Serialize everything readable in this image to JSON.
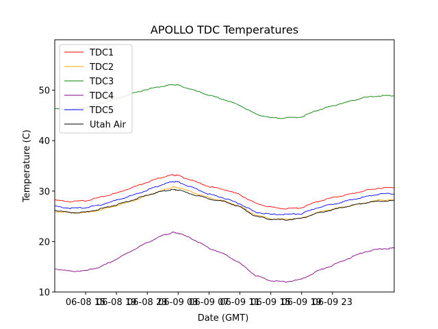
{
  "chart_data": {
    "type": "line",
    "title": "APOLLO TDC Temperatures",
    "xlabel": "Date (GMT)",
    "ylabel": "Temperature (C)",
    "xlim": [
      0,
      44
    ],
    "ylim": [
      10,
      60
    ],
    "x_unit": "hours since 06-08 11:00 GMT",
    "x_ticks": [
      {
        "x": 4,
        "label": "06-08 15"
      },
      {
        "x": 8,
        "label": "06-08 19"
      },
      {
        "x": 12,
        "label": "06-08 23"
      },
      {
        "x": 16,
        "label": "06-09 03"
      },
      {
        "x": 20,
        "label": "06-09 07"
      },
      {
        "x": 24,
        "label": "06-09 11"
      },
      {
        "x": 28,
        "label": "06-09 15"
      },
      {
        "x": 32,
        "label": "06-09 19"
      },
      {
        "x": 36,
        "label": "06-09 23"
      }
    ],
    "y_ticks": [
      10,
      20,
      30,
      40,
      50
    ],
    "legend_position": "upper-left",
    "x": [
      0,
      2,
      4,
      6,
      8,
      10,
      12,
      14,
      15.3,
      16,
      18,
      20,
      22,
      24,
      26,
      28,
      30,
      32,
      34,
      36,
      38,
      40,
      42,
      44
    ],
    "series": [
      {
        "name": "TDC1",
        "color": "#ff0000",
        "values": [
          28.2,
          27.9,
          28.1,
          28.8,
          29.6,
          30.7,
          31.8,
          32.8,
          33.2,
          33.1,
          32.0,
          30.9,
          30.3,
          29.3,
          27.6,
          26.8,
          26.5,
          26.7,
          27.9,
          28.7,
          29.3,
          30.0,
          30.6,
          30.7
        ]
      },
      {
        "name": "TDC2",
        "color": "#ffa500",
        "values": [
          26.0,
          25.7,
          25.7,
          26.3,
          27.1,
          28.0,
          29.1,
          30.2,
          30.8,
          30.7,
          29.7,
          28.7,
          28.0,
          27.0,
          25.3,
          24.5,
          24.4,
          24.6,
          25.7,
          26.4,
          27.0,
          27.6,
          28.2,
          28.3
        ]
      },
      {
        "name": "TDC3",
        "color": "#008000",
        "values": [
          46.3,
          46.1,
          46.6,
          47.4,
          48.3,
          49.3,
          50.2,
          50.8,
          51.1,
          51.0,
          50.0,
          49.0,
          48.1,
          47.0,
          45.3,
          44.5,
          44.5,
          44.7,
          46.0,
          46.9,
          47.7,
          48.5,
          48.9,
          48.9
        ]
      },
      {
        "name": "TDC4",
        "color": "#800080",
        "values": [
          14.6,
          14.1,
          14.2,
          15.0,
          16.5,
          18.2,
          19.8,
          21.2,
          21.8,
          21.7,
          20.4,
          18.7,
          17.5,
          15.7,
          13.3,
          12.2,
          12.0,
          12.5,
          14.1,
          15.3,
          16.6,
          17.9,
          18.5,
          18.7
        ]
      },
      {
        "name": "TDC5",
        "color": "#0000ff",
        "values": [
          27.0,
          26.6,
          26.7,
          27.3,
          28.2,
          29.1,
          30.2,
          31.3,
          31.9,
          31.8,
          30.6,
          29.4,
          28.6,
          27.5,
          25.8,
          25.4,
          25.4,
          25.5,
          26.7,
          27.4,
          28.1,
          28.8,
          29.4,
          29.5
        ]
      },
      {
        "name": "Utah Air",
        "color": "#000000",
        "values": [
          26.2,
          25.7,
          25.8,
          26.5,
          27.3,
          28.2,
          29.2,
          30.0,
          30.3,
          30.2,
          29.3,
          28.5,
          27.9,
          26.9,
          25.0,
          24.4,
          24.3,
          24.6,
          25.6,
          26.3,
          27.0,
          27.6,
          28.0,
          28.1
        ]
      }
    ]
  }
}
